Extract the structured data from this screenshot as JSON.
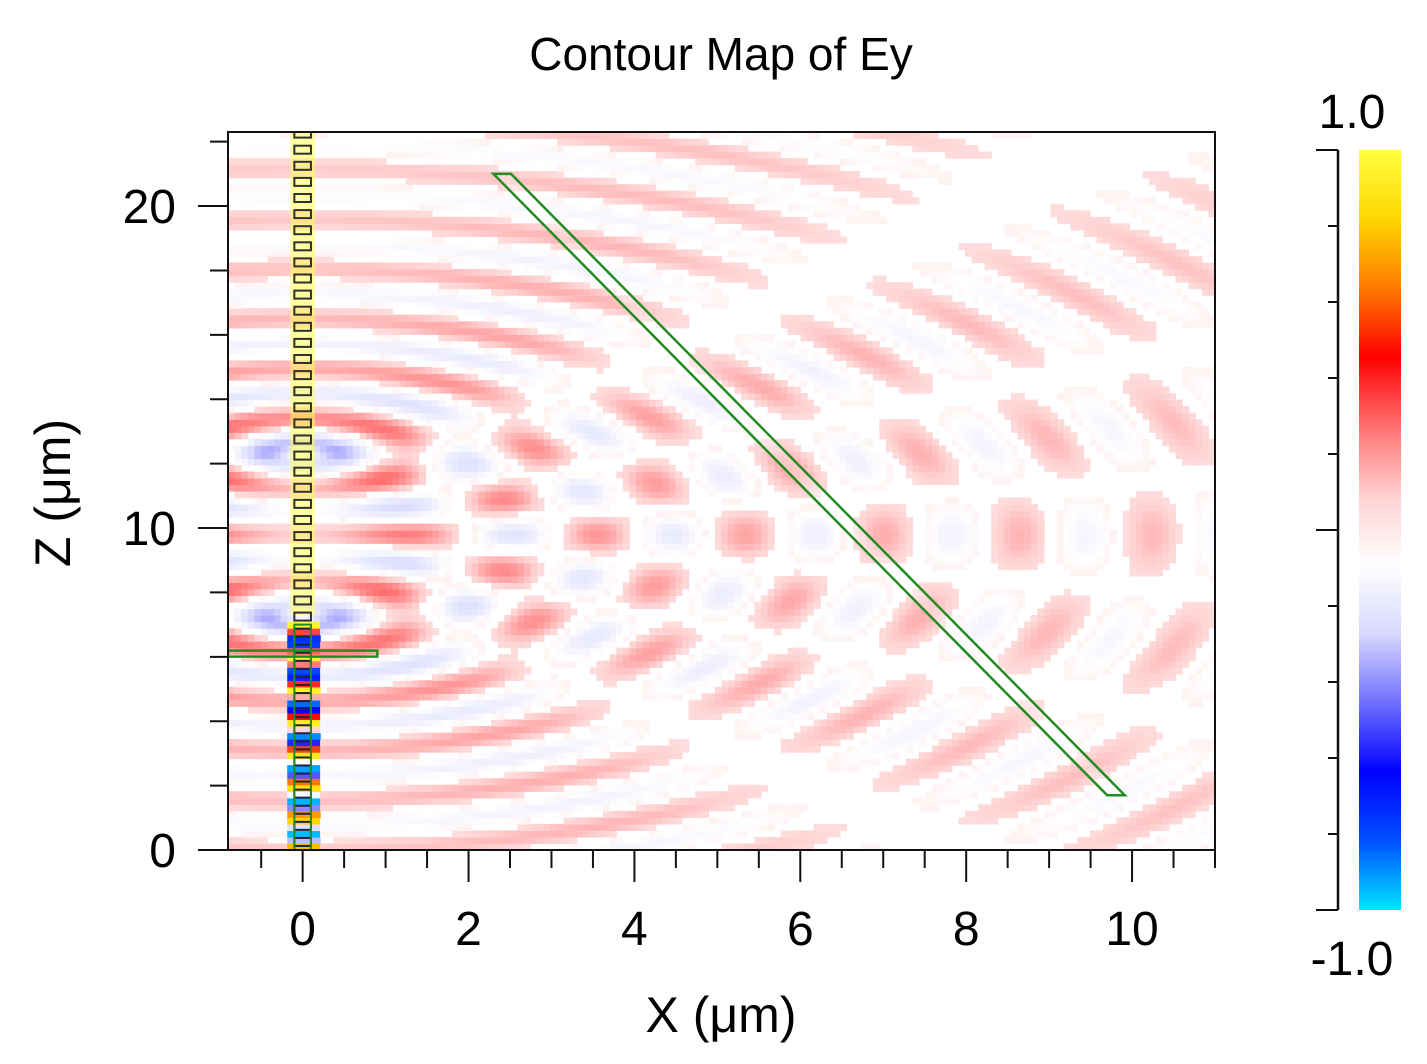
{
  "chart_data": {
    "type": "heatmap",
    "title": "Contour Map of Ey",
    "xlabel": "X (μm)",
    "ylabel": "Z (μm)",
    "xlim": [
      -0.9,
      11.0
    ],
    "ylim": [
      0,
      22.3
    ],
    "x_ticks": [
      0,
      2,
      4,
      6,
      8,
      10
    ],
    "x_tick_labels": [
      "0",
      "2",
      "4",
      "6",
      "8",
      "10"
    ],
    "y_ticks": [
      0,
      10,
      20
    ],
    "y_tick_labels": [
      "0",
      "10",
      "20"
    ],
    "colorbar": {
      "min": -1.0,
      "max": 1.0,
      "max_label": "1.0",
      "min_label": "-1.0",
      "colormap": [
        "#00e5ff",
        "#0050ff",
        "#0000ff",
        "#7070ff",
        "#d8d8ff",
        "#ffffff",
        "#ffd0d0",
        "#ff7070",
        "#ff0000",
        "#ff7a00",
        "#ffd700",
        "#ffff40"
      ]
    },
    "structures": {
      "color": "#228b22",
      "waveguide_x_range": [
        -0.1,
        0.1
      ],
      "waveguide_z_range": [
        0,
        22.3
      ],
      "horizontal_bar": {
        "x": [
          -0.9,
          0.9
        ],
        "z": 6.1
      },
      "slanted_bar": {
        "start": [
          2.3,
          21.0
        ],
        "end": [
          9.7,
          1.7
        ]
      }
    }
  }
}
